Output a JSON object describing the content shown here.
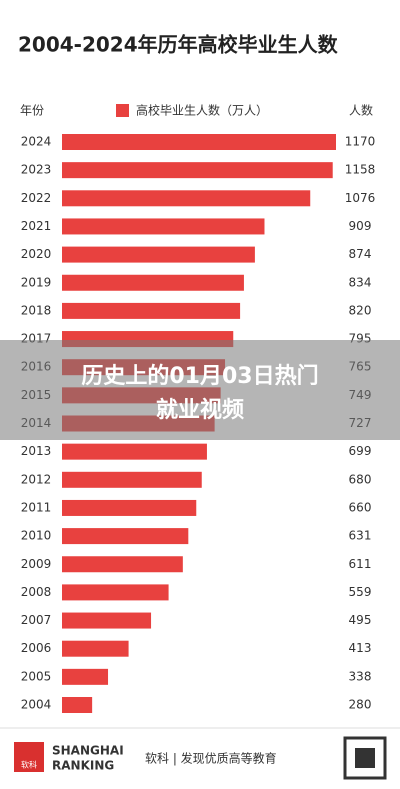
{
  "chart_data": {
    "type": "bar",
    "title": "2004-2024年历年高校毕业生人数",
    "category_label": "年份",
    "value_label": "人数",
    "series": [
      {
        "name": "高校毕业生人数（万人）",
        "color": "#e8413f",
        "values": [
          1170,
          1158,
          1076,
          909,
          874,
          834,
          820,
          795,
          765,
          749,
          727,
          699,
          680,
          660,
          631,
          611,
          559,
          495,
          413,
          338,
          280
        ]
      }
    ],
    "categories": [
      "2024",
      "2023",
      "2022",
      "2021",
      "2020",
      "2019",
      "2018",
      "2017",
      "2016",
      "2015",
      "2014",
      "2013",
      "2012",
      "2011",
      "2010",
      "2009",
      "2008",
      "2007",
      "2006",
      "2005",
      "2004"
    ],
    "xlim": [
      170,
      1170
    ]
  },
  "overlay": {
    "line1": "历史上的01月03日热门",
    "line2": "就业视频"
  },
  "footer": {
    "logo": "软科",
    "brand1": "SHANGHAI",
    "brand2": "RANKING",
    "slogan": "软科 | 发现优质高等教育"
  }
}
